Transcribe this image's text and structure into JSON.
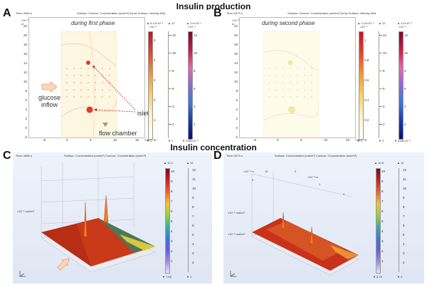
{
  "titles": {
    "top": "Insulin production",
    "bottom": "Insulin concentration"
  },
  "panels": {
    "A": {
      "letter": "A",
      "time": "Time=1860 s",
      "header": "Surface: Contour: Concentration (mol/m³)  Arrow Surface: Velocity field",
      "phase": "during first phase",
      "yexp": "×10⁻³",
      "yunit": "m",
      "xexp": "×10⁻³ m",
      "yticks": [
        "22",
        "20",
        "18",
        "16",
        "14",
        "12",
        "10",
        "8",
        "6",
        "4",
        "2",
        "0",
        "-2"
      ],
      "xticks": [
        "-5",
        "0",
        "5",
        "10",
        "15"
      ],
      "labels": {
        "glucose": "glucose",
        "inflow": "inflow",
        "islets": "islets",
        "chamber": "flow chamber"
      },
      "cb1": {
        "top": "▲ 5.13×10⁻⁵",
        "exp": "×10⁻⁵",
        "ticks": [
          "5",
          "4",
          "3",
          "2",
          "1"
        ],
        "bottom": "▼ 0"
      },
      "cb2": {
        "top": "▲ 12",
        "ticks": [
          "12",
          "10",
          "8",
          "6",
          "4",
          "2"
        ],
        "bottom": "▼ 2"
      },
      "cb3": {
        "top": "▲ 1.4×10⁻⁴",
        "exp": "×10⁻⁵",
        "ticks": [
          "12",
          "10",
          "8",
          "6",
          "4",
          "2"
        ],
        "bottom": "▼ 9.88×10⁻⁹"
      }
    },
    "B": {
      "letter": "B",
      "time": "Time=3270 s",
      "header": "Surface: Contour: Concentration (mol/m³)  Arrow Surface: Velocity field",
      "phase": "during second phase",
      "yexp": "×10⁻³",
      "yunit": "m",
      "xexp": "×10⁻³ m",
      "yticks": [
        "22",
        "20",
        "18",
        "16",
        "14",
        "12",
        "10",
        "8",
        "6",
        "4",
        "2",
        "0",
        "-2"
      ],
      "xticks": [
        "-5",
        "0",
        "5",
        "10",
        "15"
      ],
      "cb1": {
        "top": "▲ 1.13×10⁻⁵",
        "exp": "×10⁻⁵",
        "ticks": [
          "1",
          "0.8",
          "0.6",
          "0.4",
          "0.2"
        ],
        "bottom": "▼ 0"
      },
      "cb2": {
        "top": "▲ 12",
        "ticks": [
          "12",
          "10",
          "8",
          "6",
          "4",
          "2"
        ],
        "bottom": "▼ 2"
      },
      "cb3": {
        "top": "▲ 3.4×10⁻⁶",
        "exp": "×10⁻⁶",
        "ticks": [
          "12",
          "10",
          "8",
          "6",
          "4",
          "2"
        ],
        "bottom": "▼ 8.88×10⁻⁹"
      }
    },
    "C": {
      "letter": "C",
      "time": "Time=1860 s",
      "header": "Surface: Concentration (mol/m³)  Contour: Concentration (mol/m³)",
      "zexp": "×10⁻⁵ mol/m³",
      "cb1": {
        "top": "▲ 10.2",
        "ticks": [
          "10",
          "9",
          "8",
          "7",
          "6",
          "5",
          "4",
          "3",
          "2",
          "1"
        ],
        "bottom": "▼ 7.06"
      },
      "cb2": {
        "top": "▲ 12",
        "ticks": [
          "12",
          "11",
          "10",
          "9",
          "8",
          "7",
          "6",
          "5",
          "4",
          "3",
          "2"
        ],
        "bottom": "▼ 2"
      }
    },
    "D": {
      "letter": "D",
      "time": "Time=3270 s",
      "header": "Surface: Concentration (mol/m³)  Contour: Concentration (mol/m³)",
      "zexp1": "×10⁻⁶ mol/m³",
      "zexp2": "×10⁻⁶ mol/m³",
      "axis": {
        "a": "×10⁻³ m",
        "b": "10",
        "c": "2",
        "d": "×10⁻³ m",
        "e": "1",
        "f": "0",
        "g": "5"
      },
      "cb1": {
        "top": "▲ 10.8",
        "ticks": [
          "10",
          "9",
          "8",
          "7",
          "6",
          "5",
          "4",
          "3",
          "2",
          "1"
        ],
        "bottom": "▼ 8.75"
      },
      "cb2": {
        "top": "▲ 12",
        "ticks": [
          "12",
          "11",
          "10",
          "9",
          "8",
          "7",
          "6",
          "5",
          "4",
          "3",
          "2"
        ],
        "bottom": "▼ 2"
      }
    }
  }
}
